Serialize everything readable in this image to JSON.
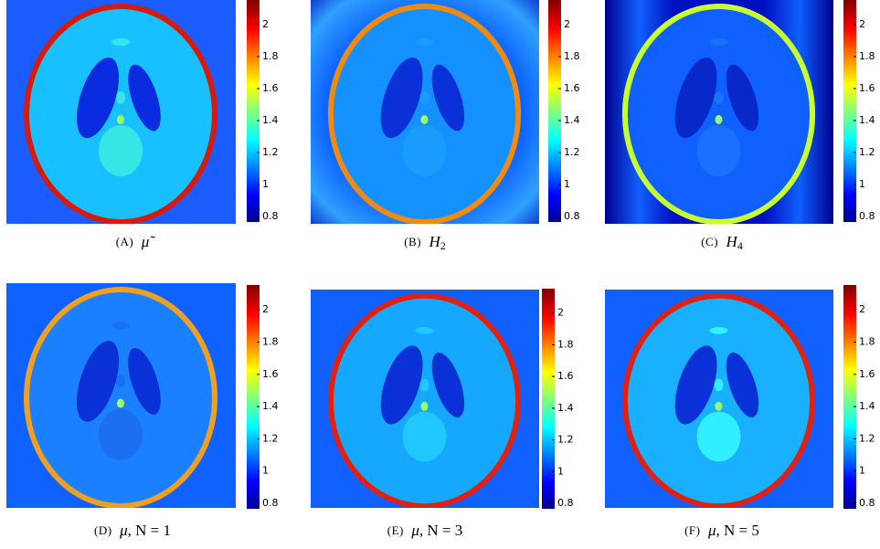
{
  "colorbar": {
    "lim": [
      0.766,
      2.154
    ],
    "ticks": [
      0.8,
      1,
      1.2,
      1.4,
      1.6,
      1.8,
      2
    ]
  },
  "panels": [
    {
      "tag": "(A)",
      "math": "μ̃"
    },
    {
      "tag": "(B)",
      "math": "H",
      "sub": "2"
    },
    {
      "tag": "(C)",
      "math": "H",
      "sub": "4"
    },
    {
      "tag": "(D)",
      "math": "μ",
      "rest": ", N = 1"
    },
    {
      "tag": "(E)",
      "math": "μ",
      "rest": ", N = 3"
    },
    {
      "tag": "(F)",
      "math": "μ",
      "rest": ", N = 5"
    }
  ]
}
